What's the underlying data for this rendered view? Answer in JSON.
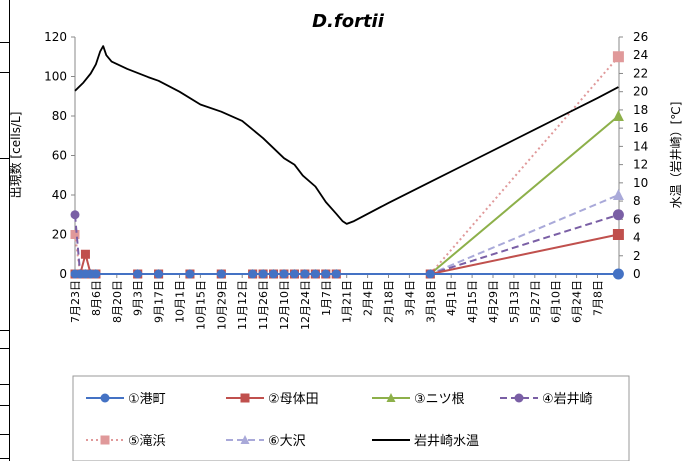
{
  "chart_data": {
    "type": "line",
    "title": "D.fortii",
    "ylabel_left": "出現数 [cells/L]",
    "ylabel_right": "水温（岩井崎）[℃]",
    "ylim_left": [
      0,
      120
    ],
    "yticks_left": [
      0,
      20,
      40,
      60,
      80,
      100,
      120
    ],
    "ylim_right": [
      0,
      26
    ],
    "yticks_right": [
      0,
      2,
      4,
      6,
      8,
      10,
      12,
      14,
      16,
      18,
      20,
      22,
      24,
      26
    ],
    "categories": [
      "7月23日",
      "8月6日",
      "8月20日",
      "9月3日",
      "9月17日",
      "10月1日",
      "10月15日",
      "10月29日",
      "11月12日",
      "11月26日",
      "12月10日",
      "12月24日",
      "1月7日",
      "1月21日",
      "2月4日",
      "2月18日",
      "3月4日",
      "3月18日",
      "4月1日",
      "4月15日",
      "4月29日",
      "5月13日",
      "5月27日",
      "6月10日",
      "6月24日",
      "7月8日"
    ],
    "series": [
      {
        "name": "①港町",
        "color": "#4472c4",
        "marker": "circle",
        "dash": "solid",
        "axis": "left",
        "points": [
          [
            0,
            0
          ],
          [
            0.5,
            0
          ],
          [
            1,
            0
          ],
          [
            1.5,
            0
          ],
          [
            2,
            0
          ],
          [
            6,
            0
          ],
          [
            8,
            0
          ],
          [
            11,
            0
          ],
          [
            14,
            0
          ],
          [
            17,
            0
          ],
          [
            18,
            0
          ],
          [
            19,
            0
          ],
          [
            20,
            0
          ],
          [
            21,
            0
          ],
          [
            22,
            0
          ],
          [
            23,
            0
          ],
          [
            24,
            0
          ],
          [
            25,
            0
          ],
          [
            34,
            0
          ],
          [
            52,
            0
          ]
        ]
      },
      {
        "name": "②母体田",
        "color": "#c0504d",
        "marker": "square",
        "dash": "solid",
        "axis": "left",
        "points": [
          [
            0,
            0
          ],
          [
            0.5,
            0
          ],
          [
            1,
            10
          ],
          [
            1.5,
            0
          ],
          [
            2,
            0
          ],
          [
            6,
            0
          ],
          [
            8,
            0
          ],
          [
            11,
            0
          ],
          [
            14,
            0
          ],
          [
            17,
            0
          ],
          [
            18,
            0
          ],
          [
            19,
            0
          ],
          [
            20,
            0
          ],
          [
            21,
            0
          ],
          [
            22,
            0
          ],
          [
            23,
            0
          ],
          [
            24,
            0
          ],
          [
            25,
            0
          ],
          [
            34,
            0
          ],
          [
            52,
            20
          ]
        ]
      },
      {
        "name": "③ニツ根",
        "color": "#8db04a",
        "marker": "triangle",
        "dash": "solid",
        "axis": "left",
        "points": [
          [
            0,
            0
          ],
          [
            0.5,
            0
          ],
          [
            1,
            0
          ],
          [
            1.5,
            0
          ],
          [
            2,
            0
          ],
          [
            6,
            0
          ],
          [
            8,
            0
          ],
          [
            11,
            0
          ],
          [
            14,
            0
          ],
          [
            17,
            0
          ],
          [
            18,
            0
          ],
          [
            19,
            0
          ],
          [
            20,
            0
          ],
          [
            21,
            0
          ],
          [
            22,
            0
          ],
          [
            23,
            0
          ],
          [
            24,
            0
          ],
          [
            25,
            0
          ],
          [
            34,
            0
          ],
          [
            52,
            80
          ]
        ]
      },
      {
        "name": "④岩井崎",
        "color": "#7a5fa5",
        "marker": "circle",
        "dash": "dashed",
        "axis": "left",
        "points": [
          [
            0,
            30
          ],
          [
            0.5,
            0
          ],
          [
            1,
            0
          ],
          [
            1.5,
            0
          ],
          [
            2,
            0
          ],
          [
            6,
            0
          ],
          [
            8,
            0
          ],
          [
            11,
            0
          ],
          [
            14,
            0
          ],
          [
            17,
            0
          ],
          [
            18,
            0
          ],
          [
            19,
            0
          ],
          [
            20,
            0
          ],
          [
            21,
            0
          ],
          [
            22,
            0
          ],
          [
            23,
            0
          ],
          [
            24,
            0
          ],
          [
            25,
            0
          ],
          [
            34,
            0
          ],
          [
            52,
            30
          ]
        ]
      },
      {
        "name": "⑤滝浜",
        "color": "#e0999a",
        "marker": "square",
        "dash": "dotted",
        "axis": "left",
        "points": [
          [
            0,
            20
          ],
          [
            0.5,
            0
          ],
          [
            1,
            0
          ],
          [
            1.5,
            0
          ],
          [
            2,
            0
          ],
          [
            6,
            0
          ],
          [
            8,
            0
          ],
          [
            11,
            0
          ],
          [
            14,
            0
          ],
          [
            17,
            0
          ],
          [
            18,
            0
          ],
          [
            19,
            0
          ],
          [
            20,
            0
          ],
          [
            21,
            0
          ],
          [
            22,
            0
          ],
          [
            23,
            0
          ],
          [
            24,
            0
          ],
          [
            25,
            0
          ],
          [
            34,
            0
          ],
          [
            52,
            110
          ]
        ]
      },
      {
        "name": "⑥大沢",
        "color": "#a9a9d9",
        "marker": "triangle",
        "dash": "dashed",
        "axis": "left",
        "points": [
          [
            0,
            0
          ],
          [
            0.5,
            0
          ],
          [
            1,
            0
          ],
          [
            1.5,
            0
          ],
          [
            2,
            0
          ],
          [
            6,
            0
          ],
          [
            8,
            0
          ],
          [
            11,
            0
          ],
          [
            14,
            0
          ],
          [
            17,
            0
          ],
          [
            18,
            0
          ],
          [
            19,
            0
          ],
          [
            20,
            0
          ],
          [
            21,
            0
          ],
          [
            22,
            0
          ],
          [
            23,
            0
          ],
          [
            24,
            0
          ],
          [
            25,
            0
          ],
          [
            34,
            0
          ],
          [
            52,
            40
          ]
        ]
      },
      {
        "name": "岩井崎水温",
        "color": "#000000",
        "marker": "none",
        "dash": "solid",
        "axis": "right",
        "points": [
          [
            0,
            20.1
          ],
          [
            0.8,
            21
          ],
          [
            1.5,
            22
          ],
          [
            2,
            23
          ],
          [
            2.4,
            24.4
          ],
          [
            2.7,
            25
          ],
          [
            3,
            24
          ],
          [
            3.5,
            23.3
          ],
          [
            5,
            22.5
          ],
          [
            7,
            21.6
          ],
          [
            8,
            21.2
          ],
          [
            10,
            20
          ],
          [
            12,
            18.6
          ],
          [
            14,
            17.8
          ],
          [
            16,
            16.8
          ],
          [
            18,
            14.9
          ],
          [
            20,
            12.7
          ],
          [
            21,
            12
          ],
          [
            21.8,
            10.8
          ],
          [
            23,
            9.6
          ],
          [
            24,
            7.9
          ],
          [
            25,
            6.6
          ],
          [
            25.6,
            5.8
          ],
          [
            26,
            5.5
          ],
          [
            26.7,
            5.8
          ],
          [
            30,
            7.8
          ],
          [
            34,
            10.1
          ],
          [
            38,
            12.4
          ],
          [
            42,
            14.7
          ],
          [
            46,
            17
          ],
          [
            50,
            19.3
          ],
          [
            52,
            20.5
          ]
        ]
      }
    ],
    "legend_position": "bottom",
    "grid": false
  }
}
